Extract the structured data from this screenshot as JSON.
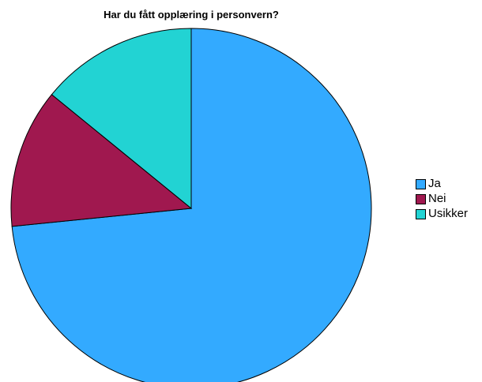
{
  "chart_data": {
    "type": "pie",
    "title": "Har du fått opplæring i personvern?",
    "categories": [
      "Ja",
      "Nei",
      "Usikker"
    ],
    "values": [
      73.4,
      12.5,
      14.1
    ],
    "colors": [
      "#33aaff",
      "#a0184f",
      "#22d3d3"
    ],
    "start_angle_deg": 0,
    "direction": "clockwise",
    "legend_position": "right"
  }
}
